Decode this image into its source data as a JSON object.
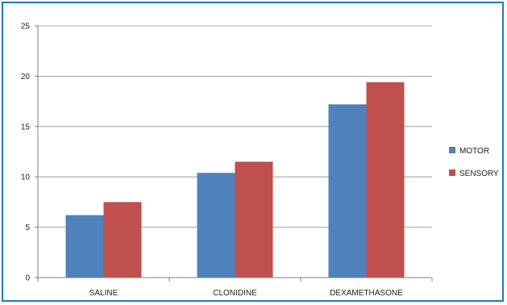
{
  "chart_data": {
    "type": "bar",
    "title": "",
    "xlabel": "",
    "ylabel": "",
    "categories": [
      "SALINE",
      "CLONIDINE",
      "DEXAMETHASONE"
    ],
    "ylim": [
      0,
      25
    ],
    "yticks": [
      0,
      5,
      10,
      15,
      20,
      25
    ],
    "grid": true,
    "legend_position": "right",
    "series": [
      {
        "name": "MOTOR",
        "values": [
          6.2,
          10.4,
          17.2
        ],
        "color": "#4f81bd"
      },
      {
        "name": "SENSORY",
        "values": [
          7.5,
          11.5,
          19.4
        ],
        "color": "#c0504d"
      }
    ]
  },
  "frame_color": "#1f77c2"
}
